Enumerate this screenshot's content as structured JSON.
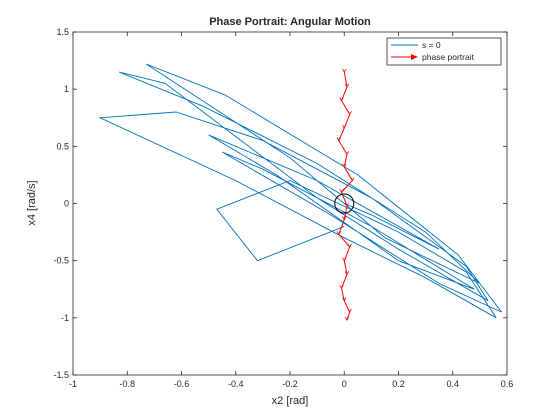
{
  "chart_data": {
    "type": "line",
    "title": "Phase Portrait: Angular Motion",
    "xlabel": "x2 [rad]",
    "ylabel": "x4 [rad/s]",
    "xlim": [
      -1,
      0.6
    ],
    "ylim": [
      -1.5,
      1.5
    ],
    "xticks": [
      -1,
      -0.8,
      -0.6,
      -0.4,
      -0.2,
      0,
      0.2,
      0.4,
      0.6
    ],
    "yticks": [
      -1.5,
      -1,
      -0.5,
      0,
      0.5,
      1,
      1.5
    ],
    "xtick_labels": [
      "-1",
      "-0.8",
      "-0.6",
      "-0.4",
      "-0.2",
      "0",
      "0.2",
      "0.4",
      "0.6"
    ],
    "ytick_labels": [
      "-1.5",
      "-1",
      "-0.5",
      "0",
      "0.5",
      "1",
      "1.5"
    ],
    "grid": false,
    "legend_position": "top-right",
    "series": [
      {
        "name": "s = 0",
        "color": "#0072BD",
        "style": "line",
        "x": [
          0.0,
          -0.32,
          -0.47,
          -0.2,
          0.2,
          0.45,
          0.56,
          0.3,
          0.0,
          -0.4,
          -0.9,
          -0.62,
          -0.3,
          0.1,
          0.45,
          0.53,
          0.2,
          -0.1,
          -0.66,
          -0.83,
          -0.52,
          -0.1,
          0.3,
          0.5,
          0.15,
          -0.2,
          -0.73,
          -0.44,
          0.05,
          0.42,
          0.58,
          0.35,
          -0.05,
          -0.45,
          -0.3,
          0.1,
          0.48,
          0.2,
          -0.25,
          -0.5,
          -0.1,
          0.35,
          0.1,
          0.0
        ],
        "y": [
          -0.2,
          -0.5,
          -0.05,
          0.2,
          -0.25,
          -0.6,
          -1.0,
          -0.65,
          -0.3,
          0.2,
          0.75,
          0.8,
          0.55,
          0.05,
          -0.55,
          -0.85,
          -0.4,
          0.05,
          1.05,
          1.15,
          0.85,
          0.35,
          -0.25,
          -0.7,
          -0.3,
          0.4,
          1.22,
          0.95,
          0.25,
          -0.45,
          -0.95,
          -0.7,
          -0.1,
          0.45,
          0.3,
          -0.2,
          -0.75,
          -0.5,
          0.25,
          0.6,
          0.2,
          -0.4,
          -0.1,
          0.0
        ]
      },
      {
        "name": "phase portrait",
        "color": "#FF0000",
        "style": "quiver",
        "x": [
          0.0,
          0.01,
          -0.01,
          0.02,
          0.0,
          -0.02,
          0.01,
          0.0,
          0.03,
          -0.01,
          0.01,
          0.0,
          -0.02,
          0.02,
          0.0,
          0.01,
          -0.01,
          0.0,
          0.02,
          0.01
        ],
        "y": [
          1.15,
          1.02,
          0.9,
          0.78,
          0.66,
          0.55,
          0.43,
          0.32,
          0.2,
          0.1,
          -0.02,
          -0.14,
          -0.27,
          -0.38,
          -0.5,
          -0.62,
          -0.74,
          -0.85,
          -0.95,
          -1.02
        ]
      }
    ],
    "annotations": [
      {
        "type": "circle",
        "x": 0.0,
        "y": 0.0,
        "radius_x": 0.035,
        "color": "#000000"
      }
    ]
  }
}
